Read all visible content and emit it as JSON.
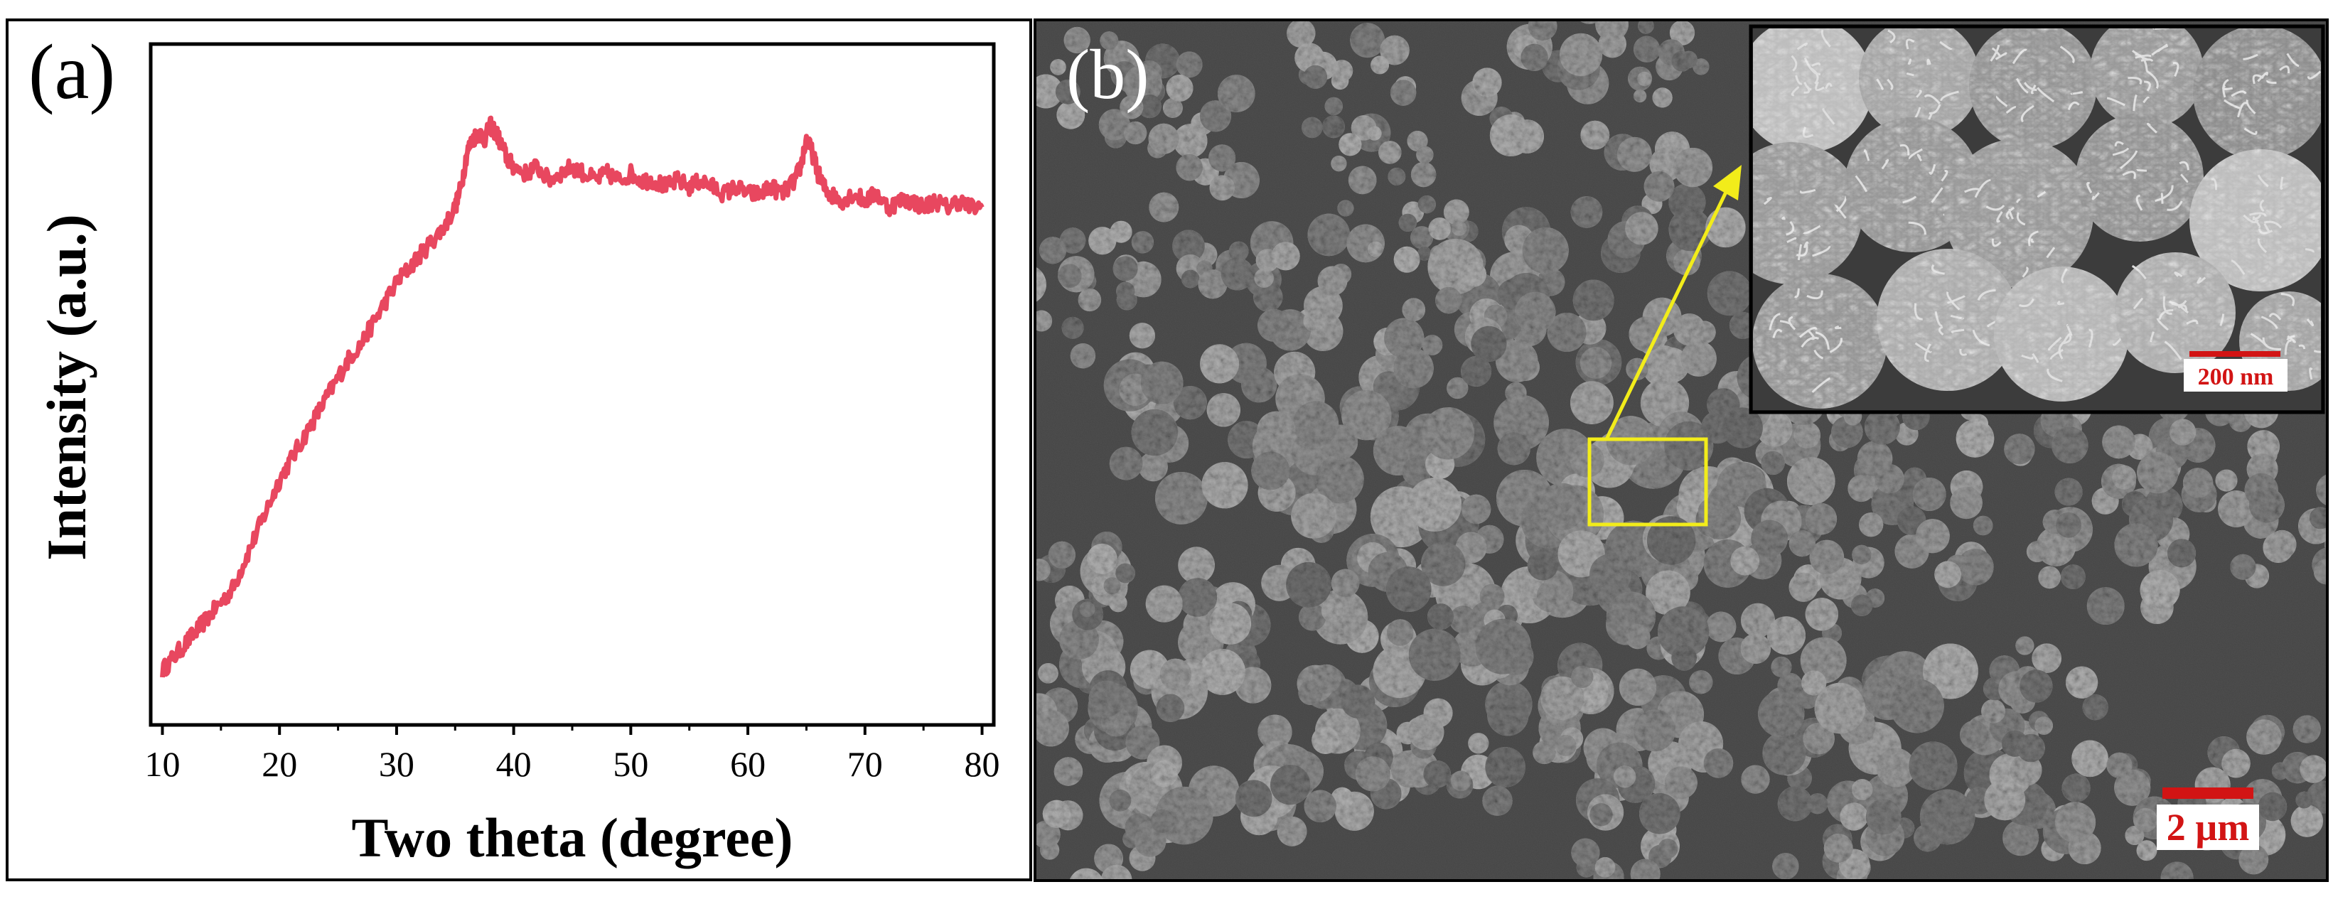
{
  "panels": {
    "a": {
      "label": "(a)",
      "chart_data": {
        "type": "line",
        "title": "",
        "xlabel": "Two theta (degree)",
        "ylabel": "Intensity (a.u.)",
        "xlim": [
          9,
          81
        ],
        "ylim": [
          0,
          1
        ],
        "y_ticks_shown": false,
        "x_ticks": [
          10,
          20,
          30,
          40,
          50,
          60,
          70,
          80
        ],
        "x_tick_labels": [
          "10",
          "20",
          "30",
          "40",
          "50",
          "60",
          "70",
          "80"
        ],
        "grid": false,
        "series": [
          {
            "color": "#e8475f",
            "x": [
              10,
              11,
              12,
              13,
              14,
              15,
              16,
              17,
              18,
              19,
              20,
              21,
              22,
              23,
              24,
              25,
              26,
              27,
              28,
              29,
              30,
              31,
              32,
              33,
              34,
              35,
              35.5,
              36,
              36.5,
              37,
              37.5,
              38,
              38.5,
              39,
              39.5,
              40,
              41,
              42,
              43,
              44,
              45,
              46,
              47,
              48,
              49,
              50,
              51,
              52,
              53,
              54,
              55,
              56,
              57,
              58,
              59,
              60,
              61,
              62,
              63,
              64,
              64.5,
              65,
              65.5,
              66,
              66.5,
              67,
              68,
              69,
              70,
              71,
              72,
              73,
              74,
              75,
              76,
              77,
              78,
              79,
              80
            ],
            "y": [
              0.08,
              0.1,
              0.12,
              0.14,
              0.16,
              0.18,
              0.2,
              0.24,
              0.28,
              0.32,
              0.36,
              0.39,
              0.42,
              0.45,
              0.48,
              0.51,
              0.54,
              0.56,
              0.59,
              0.62,
              0.65,
              0.67,
              0.69,
              0.71,
              0.73,
              0.76,
              0.79,
              0.84,
              0.86,
              0.87,
              0.86,
              0.88,
              0.87,
              0.85,
              0.83,
              0.82,
              0.81,
              0.82,
              0.8,
              0.81,
              0.82,
              0.81,
              0.8,
              0.81,
              0.8,
              0.81,
              0.8,
              0.8,
              0.79,
              0.8,
              0.79,
              0.8,
              0.79,
              0.78,
              0.79,
              0.78,
              0.78,
              0.79,
              0.78,
              0.8,
              0.82,
              0.86,
              0.84,
              0.81,
              0.79,
              0.78,
              0.77,
              0.78,
              0.77,
              0.78,
              0.76,
              0.77,
              0.77,
              0.76,
              0.77,
              0.76,
              0.77,
              0.76,
              0.76
            ]
          }
        ]
      }
    },
    "b": {
      "label": "(b)",
      "inset_scale_label": "200 nm",
      "main_scale_label": "2 µm",
      "annotation_color": "#f2ec1a",
      "scale_color": "#d21414"
    }
  }
}
